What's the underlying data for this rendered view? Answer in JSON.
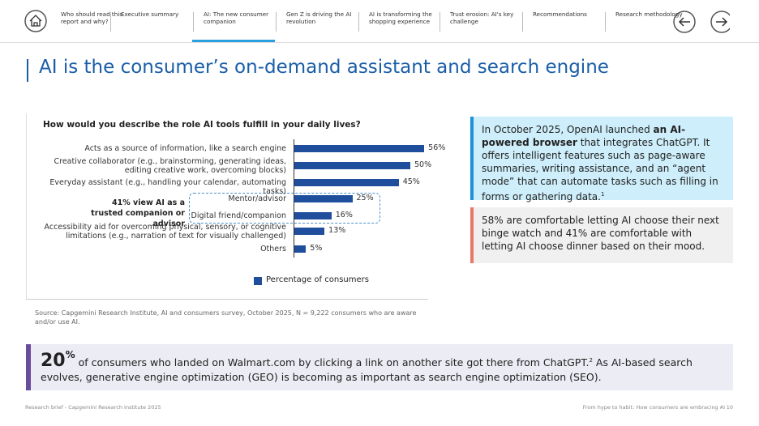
{
  "nav": {
    "items": [
      "Who should read this report and why?",
      "Executive summary",
      "AI: The new consumer companion",
      "Gen Z is driving the AI revolution",
      "AI is transforming the shopping experience",
      "Trust erosion: AI's key challenge",
      "Recommendations",
      "Research methodology"
    ],
    "active_index": 2
  },
  "title": "AI is the consumer’s on-demand assistant and search engine",
  "chart_data": {
    "type": "bar",
    "orientation": "horizontal",
    "title": "How would you describe the role AI tools fulfill in your daily lives?",
    "categories": [
      "Acts as a source of information, like a search engine",
      "Creative collaborator (e.g., brainstorming, generating ideas, editing creative work, overcoming blocks)",
      "Everyday assistant (e.g., handling your calendar, automating tasks)",
      "Mentor/advisor",
      "Digital friend/companion",
      "Accessibility aid for overcoming physical, sensory, or cognitive limitations (e.g., narration of text for visually challenged)",
      "Others"
    ],
    "series": [
      {
        "name": "Percentage of consumers",
        "color": "#1f4e9c",
        "values": [
          56,
          50,
          45,
          25,
          16,
          13,
          5
        ],
        "value_labels": [
          "56%",
          "50%",
          "45%",
          "25%",
          "16%",
          "13%",
          "5%"
        ]
      }
    ],
    "annotation": "41% view AI as a trusted companion or advisor",
    "source": "Source: Capgemini Research Institute, AI and consumers survey, October 2025, N = 9,222 consumers who are aware and/or use AI."
  },
  "callouts": [
    {
      "segments": [
        {
          "text": "In October 2025, OpenAI launched ",
          "style": "normal"
        },
        {
          "text": "an AI-powered browser",
          "style": "bold"
        },
        {
          "text": " that integrates ChatGPT. It offers intelligent features such as page-aware summaries, writing assistance, and an “agent mode” that can automate tasks such as filling in forms or gathering data.",
          "style": "normal"
        },
        {
          "text": "1",
          "style": "sup"
        }
      ]
    },
    {
      "segments": [
        {
          "text": "58% are comfortable letting AI choose their next binge watch and 41% are comfortable with letting AI choose dinner based on their mood.",
          "style": "normal"
        }
      ]
    }
  ],
  "banner": {
    "stat": "20",
    "stat_unit": "%",
    "segments": [
      {
        "text": " of consumers who landed on Walmart.com by clicking a link on another site got there from ChatGPT.",
        "style": "normal"
      },
      {
        "text": "2",
        "style": "sup"
      },
      {
        "text": " As AI-based search evolves, generative engine optimization (GEO) is becoming as important as search engine optimization (SEO).",
        "style": "normal"
      }
    ]
  },
  "footer": {
    "left": "Research brief - Capgemini Research Institute 2025",
    "right": "From hype to habit: How consumers are embracing AI",
    "page": "10"
  }
}
